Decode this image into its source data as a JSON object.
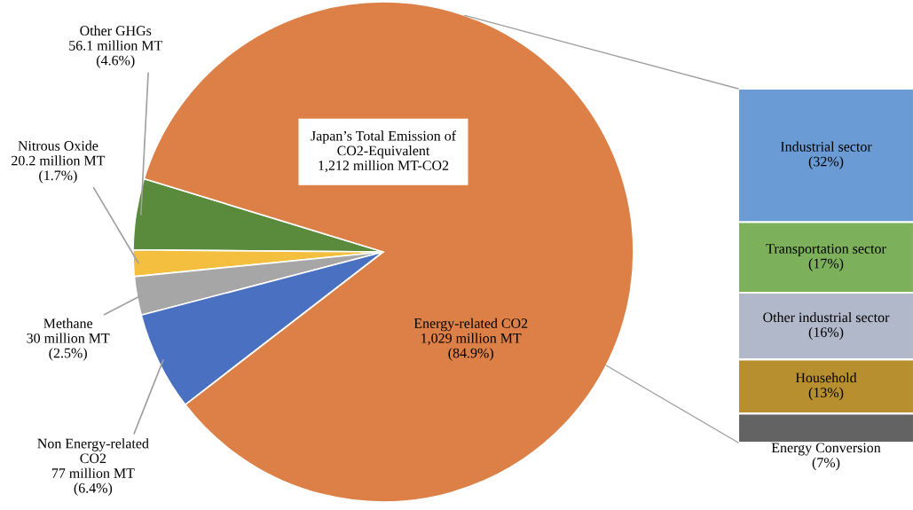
{
  "chart_data": [
    {
      "type": "pie",
      "categories": [
        "Other GHGs",
        "Nitrous Oxide",
        "Methane",
        "Non Energy-related\nCO2",
        "Energy-related CO2"
      ],
      "values": [
        4.6,
        1.7,
        2.5,
        6.4,
        84.9
      ],
      "value_labels": [
        "56.1 million MT\n(4.6%)",
        "20.2 million MT\n(1.7%)",
        "30 million MT\n(2.5%)",
        "77 million MT\n(6.4%)",
        "1,029 million MT\n(84.9%)"
      ],
      "colors": [
        "#5a8a3c",
        "#f4bf3f",
        "#a6a6a6",
        "#4a70c2",
        "#dd8047"
      ],
      "annotations": [
        "Japan’s Total Emission of\nCO2-Equivalent\n1,212 million MT-CO2"
      ]
    },
    {
      "type": "bar",
      "stacked": true,
      "categories": [
        null
      ],
      "series": [
        {
          "name": "Energy Conversion",
          "color": "#636363",
          "values": [
            7
          ],
          "value_labels": [
            "(7%)"
          ]
        },
        {
          "name": "Household",
          "color": "#b88f2f",
          "values": [
            13
          ],
          "value_labels": [
            "(13%)"
          ]
        },
        {
          "name": "Other industrial sector",
          "color": "#b0b8c9",
          "values": [
            16
          ],
          "value_labels": [
            "(16%)"
          ]
        },
        {
          "name": "Transportation sector",
          "color": "#7db05a",
          "values": [
            17
          ],
          "value_labels": [
            "(17%)"
          ]
        },
        {
          "name": "Industrial sector",
          "color": "#6a9bd4",
          "values": [
            32
          ],
          "value_labels": [
            "(32%)"
          ]
        }
      ]
    }
  ]
}
